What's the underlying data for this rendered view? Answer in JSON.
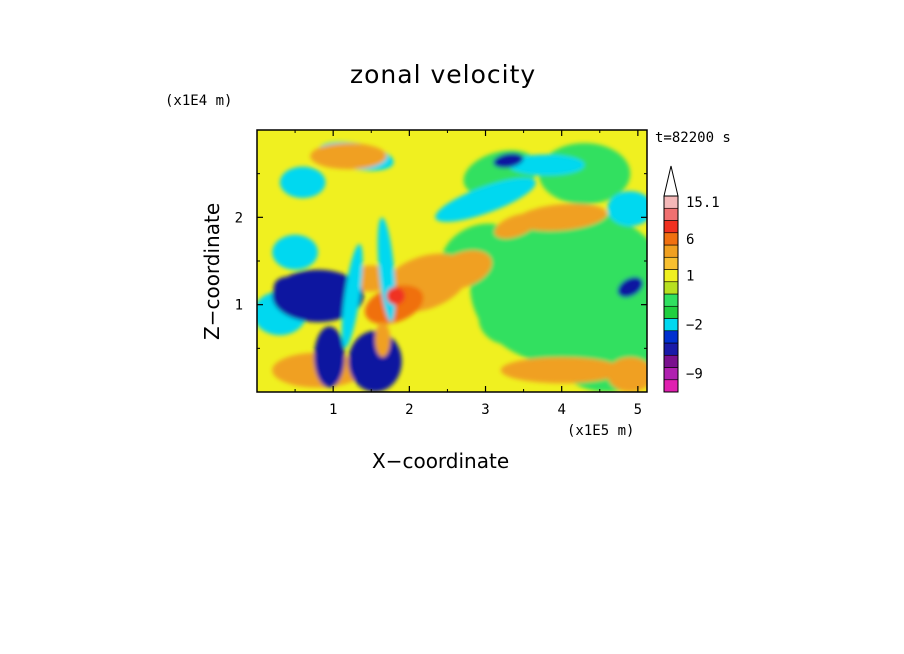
{
  "chart_data": {
    "type": "heatmap",
    "title": "zonal velocity",
    "xlabel": "X−coordinate",
    "ylabel": "Z−coordinate",
    "x_unit": "(x1E5 m)",
    "y_unit": "(x1E4 m)",
    "time_label": "t=82200 s",
    "xlim": [
      0,
      5.12
    ],
    "ylim": [
      0,
      3.0
    ],
    "x_ticks": [
      "1",
      "2",
      "3",
      "4",
      "5"
    ],
    "y_ticks": [
      "1",
      "2"
    ],
    "colorbar": {
      "labels": [
        "15.1",
        "6",
        "1",
        "−2",
        "−9"
      ],
      "levels": [
        {
          "color": "#e020b0",
          "range": "< -9"
        },
        {
          "color": "#b020b0",
          "range": "-9"
        },
        {
          "color": "#7a108e",
          "range": ""
        },
        {
          "color": "#1a1aa8",
          "range": ""
        },
        {
          "color": "#0030d0",
          "range": ""
        },
        {
          "color": "#00d8f0",
          "range": "-2"
        },
        {
          "color": "#20d040",
          "range": ""
        },
        {
          "color": "#30e060",
          "range": ""
        },
        {
          "color": "#b8e020",
          "range": ""
        },
        {
          "color": "#f0f020",
          "range": "1"
        },
        {
          "color": "#f8c030",
          "range": ""
        },
        {
          "color": "#f0a020",
          "range": ""
        },
        {
          "color": "#f07010",
          "range": "6"
        },
        {
          "color": "#f03020",
          "range": ""
        },
        {
          "color": "#f07070",
          "range": ""
        },
        {
          "color": "#f4b8b8",
          "range": "15.1"
        }
      ]
    },
    "colors": {
      "strong_negative": "#0a18a0",
      "negative": "#00d8f0",
      "weak_negative": "#30e060",
      "weak_positive": "#f0f020",
      "positive": "#f0a020",
      "strong_positive": "#f07010",
      "max": "#f03020"
    }
  }
}
